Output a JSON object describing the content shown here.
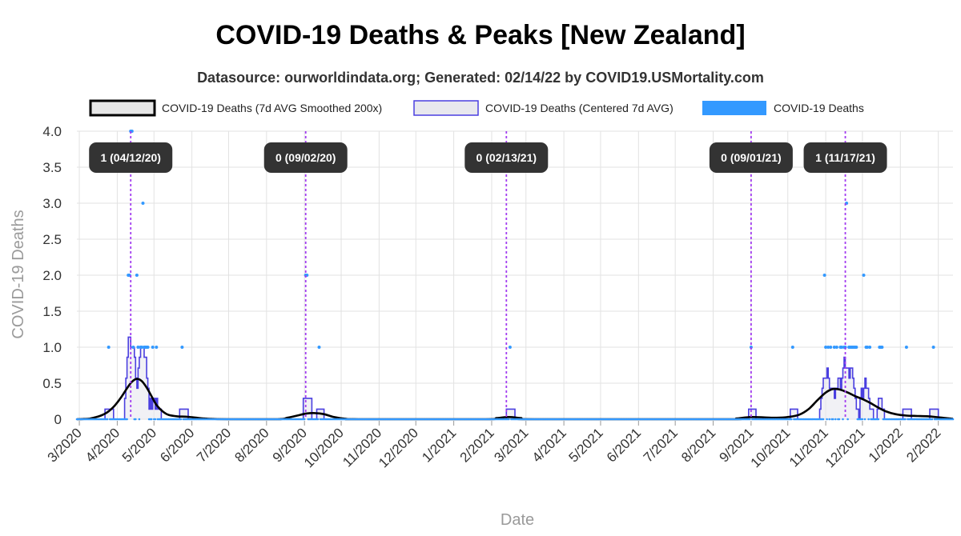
{
  "chart_data": {
    "type": "line",
    "title": "COVID-19 Deaths & Peaks [New Zealand]",
    "subtitle": "Datasource: ourworldindata.org; Generated: 02/14/22 by COVID19.USMortality.com",
    "xlabel": "Date",
    "ylabel": "COVID-19 Deaths",
    "x_range": [
      "2020-02-28",
      "2022-02-13"
    ],
    "ylim": [
      0,
      4.0
    ],
    "y_ticks": [
      "0",
      "0.5",
      "1.0",
      "1.5",
      "2.0",
      "2.5",
      "3.0",
      "3.5",
      "4.0"
    ],
    "y_tick_values": [
      0,
      0.5,
      1.0,
      1.5,
      2.0,
      2.5,
      3.0,
      3.5,
      4.0
    ],
    "x_ticks": [
      {
        "label": "3/2020",
        "date": "2020-03-01"
      },
      {
        "label": "4/2020",
        "date": "2020-04-01"
      },
      {
        "label": "5/2020",
        "date": "2020-05-01"
      },
      {
        "label": "6/2020",
        "date": "2020-06-01"
      },
      {
        "label": "7/2020",
        "date": "2020-07-01"
      },
      {
        "label": "8/2020",
        "date": "2020-08-01"
      },
      {
        "label": "9/2020",
        "date": "2020-09-01"
      },
      {
        "label": "10/2020",
        "date": "2020-10-01"
      },
      {
        "label": "11/2020",
        "date": "2020-11-01"
      },
      {
        "label": "12/2020",
        "date": "2020-12-01"
      },
      {
        "label": "1/2021",
        "date": "2021-01-01"
      },
      {
        "label": "2/2021",
        "date": "2021-02-01"
      },
      {
        "label": "3/2021",
        "date": "2021-03-01"
      },
      {
        "label": "4/2021",
        "date": "2021-04-01"
      },
      {
        "label": "5/2021",
        "date": "2021-05-01"
      },
      {
        "label": "6/2021",
        "date": "2021-06-01"
      },
      {
        "label": "7/2021",
        "date": "2021-07-01"
      },
      {
        "label": "8/2021",
        "date": "2021-08-01"
      },
      {
        "label": "9/2021",
        "date": "2021-09-01"
      },
      {
        "label": "10/2021",
        "date": "2021-10-01"
      },
      {
        "label": "11/2021",
        "date": "2021-11-01"
      },
      {
        "label": "12/2021",
        "date": "2021-12-01"
      },
      {
        "label": "1/2022",
        "date": "2022-01-01"
      },
      {
        "label": "2/2022",
        "date": "2022-02-01"
      }
    ],
    "grid": true,
    "legend_position": "top",
    "legend": [
      {
        "label": "COVID-19 Deaths (7d AVG Smoothed 200x)",
        "style": "smoothed"
      },
      {
        "label": "COVID-19 Deaths (Centered 7d AVG)",
        "style": "centered"
      },
      {
        "label": "COVID-19 Deaths",
        "style": "daily"
      }
    ],
    "colors": {
      "smoothed": "#000000",
      "smoothed_fill": "#e6e6e6",
      "centered": "#4a3fe0",
      "centered_fill": "#e8e8ee",
      "daily": "#3399ff",
      "peak_line": "#a23cf0",
      "peak_label_bg": "#333333",
      "grid": "#e2e2e2"
    },
    "peaks": [
      {
        "label": "1 (04/12/20)",
        "date": "2020-04-12"
      },
      {
        "label": "0 (09/02/20)",
        "date": "2020-09-02"
      },
      {
        "label": "0 (02/13/21)",
        "date": "2021-02-13"
      },
      {
        "label": "0 (09/01/21)",
        "date": "2021-09-01"
      },
      {
        "label": "1 (11/17/21)",
        "date": "2021-11-17"
      }
    ],
    "daily_points": [
      {
        "date": "2020-03-25",
        "value": 1
      },
      {
        "date": "2020-04-10",
        "value": 2
      },
      {
        "date": "2020-04-11",
        "value": 2
      },
      {
        "date": "2020-04-12",
        "value": 4
      },
      {
        "date": "2020-04-13",
        "value": 4
      },
      {
        "date": "2020-04-14",
        "value": 1
      },
      {
        "date": "2020-04-17",
        "value": 2
      },
      {
        "date": "2020-04-18",
        "value": 1
      },
      {
        "date": "2020-04-20",
        "value": 1
      },
      {
        "date": "2020-04-21",
        "value": 1
      },
      {
        "date": "2020-04-22",
        "value": 3
      },
      {
        "date": "2020-04-23",
        "value": 1
      },
      {
        "date": "2020-04-24",
        "value": 1
      },
      {
        "date": "2020-04-25",
        "value": 1
      },
      {
        "date": "2020-04-26",
        "value": 1
      },
      {
        "date": "2020-04-30",
        "value": 1
      },
      {
        "date": "2020-05-03",
        "value": 1
      },
      {
        "date": "2020-05-24",
        "value": 1
      },
      {
        "date": "2020-09-02",
        "value": 2
      },
      {
        "date": "2020-09-03",
        "value": 2
      },
      {
        "date": "2020-09-13",
        "value": 1
      },
      {
        "date": "2021-02-16",
        "value": 1
      },
      {
        "date": "2021-09-01",
        "value": 1
      },
      {
        "date": "2021-10-05",
        "value": 1
      },
      {
        "date": "2021-10-31",
        "value": 2
      },
      {
        "date": "2021-11-01",
        "value": 1
      },
      {
        "date": "2021-11-03",
        "value": 1
      },
      {
        "date": "2021-11-05",
        "value": 1
      },
      {
        "date": "2021-11-08",
        "value": 1
      },
      {
        "date": "2021-11-10",
        "value": 1
      },
      {
        "date": "2021-11-13",
        "value": 1
      },
      {
        "date": "2021-11-14",
        "value": 1
      },
      {
        "date": "2021-11-16",
        "value": 1
      },
      {
        "date": "2021-11-17",
        "value": 1
      },
      {
        "date": "2021-11-18",
        "value": 3
      },
      {
        "date": "2021-11-20",
        "value": 1
      },
      {
        "date": "2021-11-21",
        "value": 1
      },
      {
        "date": "2021-11-22",
        "value": 1
      },
      {
        "date": "2021-11-23",
        "value": 1
      },
      {
        "date": "2021-11-24",
        "value": 1
      },
      {
        "date": "2021-11-25",
        "value": 1
      },
      {
        "date": "2021-11-26",
        "value": 1
      },
      {
        "date": "2021-12-02",
        "value": 2
      },
      {
        "date": "2021-12-04",
        "value": 1
      },
      {
        "date": "2021-12-05",
        "value": 1
      },
      {
        "date": "2021-12-07",
        "value": 1
      },
      {
        "date": "2021-12-15",
        "value": 1
      },
      {
        "date": "2021-12-16",
        "value": 1
      },
      {
        "date": "2021-12-17",
        "value": 1
      },
      {
        "date": "2022-01-06",
        "value": 1
      },
      {
        "date": "2022-01-28",
        "value": 1
      }
    ],
    "centered_7d_avg": [
      {
        "date": "2020-02-28",
        "value": 0
      },
      {
        "date": "2020-03-21",
        "value": 0
      },
      {
        "date": "2020-03-22",
        "value": 0.14
      },
      {
        "date": "2020-03-28",
        "value": 0.14
      },
      {
        "date": "2020-03-29",
        "value": 0
      },
      {
        "date": "2020-04-06",
        "value": 0
      },
      {
        "date": "2020-04-07",
        "value": 0.29
      },
      {
        "date": "2020-04-08",
        "value": 0.57
      },
      {
        "date": "2020-04-09",
        "value": 0.86
      },
      {
        "date": "2020-04-10",
        "value": 1.14
      },
      {
        "date": "2020-04-11",
        "value": 1.14
      },
      {
        "date": "2020-04-12",
        "value": 1.0
      },
      {
        "date": "2020-04-13",
        "value": 1.0
      },
      {
        "date": "2020-04-14",
        "value": 1.0
      },
      {
        "date": "2020-04-15",
        "value": 0.86
      },
      {
        "date": "2020-04-16",
        "value": 0.57
      },
      {
        "date": "2020-04-17",
        "value": 0.43
      },
      {
        "date": "2020-04-18",
        "value": 0.71
      },
      {
        "date": "2020-04-19",
        "value": 0.86
      },
      {
        "date": "2020-04-20",
        "value": 1.0
      },
      {
        "date": "2020-04-21",
        "value": 1.0
      },
      {
        "date": "2020-04-22",
        "value": 1.0
      },
      {
        "date": "2020-04-23",
        "value": 0.86
      },
      {
        "date": "2020-04-24",
        "value": 0.86
      },
      {
        "date": "2020-04-25",
        "value": 0.57
      },
      {
        "date": "2020-04-26",
        "value": 0.43
      },
      {
        "date": "2020-04-27",
        "value": 0.14
      },
      {
        "date": "2020-04-28",
        "value": 0.29
      },
      {
        "date": "2020-04-29",
        "value": 0.14
      },
      {
        "date": "2020-04-30",
        "value": 0.29
      },
      {
        "date": "2020-05-01",
        "value": 0.29
      },
      {
        "date": "2020-05-02",
        "value": 0.14
      },
      {
        "date": "2020-05-03",
        "value": 0.29
      },
      {
        "date": "2020-05-04",
        "value": 0.14
      },
      {
        "date": "2020-05-05",
        "value": 0.14
      },
      {
        "date": "2020-05-06",
        "value": 0.14
      },
      {
        "date": "2020-05-07",
        "value": 0
      },
      {
        "date": "2020-05-21",
        "value": 0
      },
      {
        "date": "2020-05-22",
        "value": 0.14
      },
      {
        "date": "2020-05-28",
        "value": 0.14
      },
      {
        "date": "2020-05-29",
        "value": 0
      },
      {
        "date": "2020-08-30",
        "value": 0
      },
      {
        "date": "2020-08-31",
        "value": 0.29
      },
      {
        "date": "2020-09-06",
        "value": 0.29
      },
      {
        "date": "2020-09-07",
        "value": 0
      },
      {
        "date": "2020-09-10",
        "value": 0
      },
      {
        "date": "2020-09-11",
        "value": 0.14
      },
      {
        "date": "2020-09-16",
        "value": 0.14
      },
      {
        "date": "2020-09-17",
        "value": 0
      },
      {
        "date": "2021-02-12",
        "value": 0
      },
      {
        "date": "2021-02-13",
        "value": 0.14
      },
      {
        "date": "2021-02-19",
        "value": 0.14
      },
      {
        "date": "2021-02-20",
        "value": 0
      },
      {
        "date": "2021-08-29",
        "value": 0
      },
      {
        "date": "2021-08-30",
        "value": 0.14
      },
      {
        "date": "2021-09-04",
        "value": 0.14
      },
      {
        "date": "2021-09-05",
        "value": 0
      },
      {
        "date": "2021-10-02",
        "value": 0
      },
      {
        "date": "2021-10-03",
        "value": 0.14
      },
      {
        "date": "2021-10-08",
        "value": 0.14
      },
      {
        "date": "2021-10-09",
        "value": 0
      },
      {
        "date": "2021-10-26",
        "value": 0
      },
      {
        "date": "2021-10-27",
        "value": 0.14
      },
      {
        "date": "2021-10-28",
        "value": 0.29
      },
      {
        "date": "2021-10-29",
        "value": 0.43
      },
      {
        "date": "2021-10-30",
        "value": 0.57
      },
      {
        "date": "2021-10-31",
        "value": 0.57
      },
      {
        "date": "2021-11-01",
        "value": 0.57
      },
      {
        "date": "2021-11-02",
        "value": 0.71
      },
      {
        "date": "2021-11-03",
        "value": 0.57
      },
      {
        "date": "2021-11-04",
        "value": 0.43
      },
      {
        "date": "2021-11-05",
        "value": 0.43
      },
      {
        "date": "2021-11-06",
        "value": 0.43
      },
      {
        "date": "2021-11-07",
        "value": 0.43
      },
      {
        "date": "2021-11-08",
        "value": 0.29
      },
      {
        "date": "2021-11-09",
        "value": 0.43
      },
      {
        "date": "2021-11-10",
        "value": 0.43
      },
      {
        "date": "2021-11-11",
        "value": 0.57
      },
      {
        "date": "2021-11-12",
        "value": 0.57
      },
      {
        "date": "2021-11-13",
        "value": 0.43
      },
      {
        "date": "2021-11-14",
        "value": 0.57
      },
      {
        "date": "2021-11-15",
        "value": 0.71
      },
      {
        "date": "2021-11-16",
        "value": 0.86
      },
      {
        "date": "2021-11-17",
        "value": 0.71
      },
      {
        "date": "2021-11-18",
        "value": 0.71
      },
      {
        "date": "2021-11-19",
        "value": 0.71
      },
      {
        "date": "2021-11-20",
        "value": 0.57
      },
      {
        "date": "2021-11-21",
        "value": 0.71
      },
      {
        "date": "2021-11-22",
        "value": 0.71
      },
      {
        "date": "2021-11-23",
        "value": 0.57
      },
      {
        "date": "2021-11-24",
        "value": 0.43
      },
      {
        "date": "2021-11-25",
        "value": 0.29
      },
      {
        "date": "2021-11-26",
        "value": 0.14
      },
      {
        "date": "2021-11-27",
        "value": 0.14
      },
      {
        "date": "2021-11-28",
        "value": 0
      },
      {
        "date": "2021-11-29",
        "value": 0.29
      },
      {
        "date": "2021-11-30",
        "value": 0.43
      },
      {
        "date": "2021-12-01",
        "value": 0.29
      },
      {
        "date": "2021-12-02",
        "value": 0.43
      },
      {
        "date": "2021-12-03",
        "value": 0.57
      },
      {
        "date": "2021-12-04",
        "value": 0.43
      },
      {
        "date": "2021-12-05",
        "value": 0.43
      },
      {
        "date": "2021-12-06",
        "value": 0.29
      },
      {
        "date": "2021-12-07",
        "value": 0.14
      },
      {
        "date": "2021-12-08",
        "value": 0.14
      },
      {
        "date": "2021-12-09",
        "value": 0.14
      },
      {
        "date": "2021-12-10",
        "value": 0
      },
      {
        "date": "2021-12-12",
        "value": 0
      },
      {
        "date": "2021-12-13",
        "value": 0.14
      },
      {
        "date": "2021-12-14",
        "value": 0.29
      },
      {
        "date": "2021-12-15",
        "value": 0.29
      },
      {
        "date": "2021-12-16",
        "value": 0.29
      },
      {
        "date": "2021-12-17",
        "value": 0.14
      },
      {
        "date": "2021-12-18",
        "value": 0.14
      },
      {
        "date": "2021-12-19",
        "value": 0
      },
      {
        "date": "2022-01-02",
        "value": 0
      },
      {
        "date": "2022-01-03",
        "value": 0.14
      },
      {
        "date": "2022-01-09",
        "value": 0.14
      },
      {
        "date": "2022-01-10",
        "value": 0
      },
      {
        "date": "2022-01-24",
        "value": 0
      },
      {
        "date": "2022-01-25",
        "value": 0.14
      },
      {
        "date": "2022-01-31",
        "value": 0.14
      },
      {
        "date": "2022-02-01",
        "value": 0
      },
      {
        "date": "2022-02-13",
        "value": 0
      }
    ],
    "smoothed": [
      {
        "date": "2020-02-28",
        "value": 0
      },
      {
        "date": "2020-03-05",
        "value": 0.003
      },
      {
        "date": "2020-03-10",
        "value": 0.01
      },
      {
        "date": "2020-03-15",
        "value": 0.03
      },
      {
        "date": "2020-03-20",
        "value": 0.06
      },
      {
        "date": "2020-03-25",
        "value": 0.11
      },
      {
        "date": "2020-03-30",
        "value": 0.19
      },
      {
        "date": "2020-04-04",
        "value": 0.3
      },
      {
        "date": "2020-04-09",
        "value": 0.43
      },
      {
        "date": "2020-04-13",
        "value": 0.52
      },
      {
        "date": "2020-04-17",
        "value": 0.56
      },
      {
        "date": "2020-04-21",
        "value": 0.53
      },
      {
        "date": "2020-04-25",
        "value": 0.44
      },
      {
        "date": "2020-04-29",
        "value": 0.32
      },
      {
        "date": "2020-05-03",
        "value": 0.2
      },
      {
        "date": "2020-05-08",
        "value": 0.11
      },
      {
        "date": "2020-05-13",
        "value": 0.06
      },
      {
        "date": "2020-05-20",
        "value": 0.04
      },
      {
        "date": "2020-05-28",
        "value": 0.035
      },
      {
        "date": "2020-06-05",
        "value": 0.02
      },
      {
        "date": "2020-06-15",
        "value": 0.005
      },
      {
        "date": "2020-07-01",
        "value": 0
      },
      {
        "date": "2020-08-10",
        "value": 0
      },
      {
        "date": "2020-08-18",
        "value": 0.02
      },
      {
        "date": "2020-08-26",
        "value": 0.05
      },
      {
        "date": "2020-09-03",
        "value": 0.08
      },
      {
        "date": "2020-09-10",
        "value": 0.085
      },
      {
        "date": "2020-09-17",
        "value": 0.07
      },
      {
        "date": "2020-09-25",
        "value": 0.03
      },
      {
        "date": "2020-10-05",
        "value": 0.005
      },
      {
        "date": "2020-10-15",
        "value": 0
      },
      {
        "date": "2021-01-25",
        "value": 0
      },
      {
        "date": "2021-02-05",
        "value": 0.015
      },
      {
        "date": "2021-02-15",
        "value": 0.03
      },
      {
        "date": "2021-02-25",
        "value": 0.015
      },
      {
        "date": "2021-03-08",
        "value": 0
      },
      {
        "date": "2021-08-10",
        "value": 0
      },
      {
        "date": "2021-08-20",
        "value": 0.01
      },
      {
        "date": "2021-09-01",
        "value": 0.03
      },
      {
        "date": "2021-09-12",
        "value": 0.025
      },
      {
        "date": "2021-09-22",
        "value": 0.02
      },
      {
        "date": "2021-10-01",
        "value": 0.03
      },
      {
        "date": "2021-10-10",
        "value": 0.06
      },
      {
        "date": "2021-10-18",
        "value": 0.14
      },
      {
        "date": "2021-10-25",
        "value": 0.26
      },
      {
        "date": "2021-11-01",
        "value": 0.37
      },
      {
        "date": "2021-11-07",
        "value": 0.42
      },
      {
        "date": "2021-11-13",
        "value": 0.41
      },
      {
        "date": "2021-11-19",
        "value": 0.37
      },
      {
        "date": "2021-11-25",
        "value": 0.32
      },
      {
        "date": "2021-12-01",
        "value": 0.28
      },
      {
        "date": "2021-12-07",
        "value": 0.23
      },
      {
        "date": "2021-12-13",
        "value": 0.17
      },
      {
        "date": "2021-12-20",
        "value": 0.11
      },
      {
        "date": "2021-12-28",
        "value": 0.07
      },
      {
        "date": "2022-01-06",
        "value": 0.05
      },
      {
        "date": "2022-01-15",
        "value": 0.045
      },
      {
        "date": "2022-01-24",
        "value": 0.04
      },
      {
        "date": "2022-02-02",
        "value": 0.025
      },
      {
        "date": "2022-02-13",
        "value": 0.005
      }
    ]
  }
}
